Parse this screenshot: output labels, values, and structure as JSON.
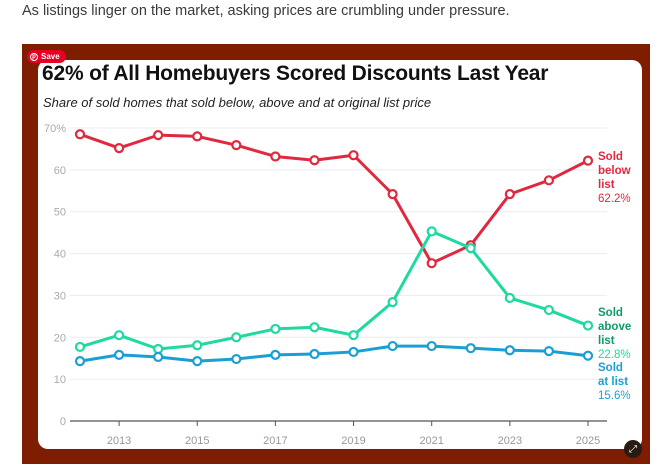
{
  "article": {
    "intro_text": "As listings linger on the market, asking prices are crumbling under pressure."
  },
  "overlay": {
    "save_label": "Save",
    "expand_icon": "expand-icon"
  },
  "colors": {
    "frame": "#7f1d00",
    "below": "#e0293f",
    "above": "#1ed9a0",
    "at": "#1a9fd4"
  },
  "chart_data": {
    "type": "line",
    "title": "62% of All Homebuyers Scored Discounts Last Year",
    "subtitle": "Share of sold homes that sold below, above and at original list price",
    "x": [
      2012,
      2013,
      2014,
      2015,
      2016,
      2017,
      2018,
      2019,
      2020,
      2021,
      2022,
      2023,
      2024,
      2025
    ],
    "x_ticks": [
      "2013",
      "2015",
      "2017",
      "2019",
      "2021",
      "2023",
      "2025"
    ],
    "y_ticks": [
      "0",
      "10",
      "20",
      "30",
      "40",
      "50",
      "60",
      "70%"
    ],
    "ylim": [
      0,
      70
    ],
    "grid": true,
    "series": [
      {
        "name": "Sold below list",
        "label_lines": [
          "Sold",
          "below",
          "list"
        ],
        "end_label": "62.2%",
        "color": "#e0293f",
        "values": [
          68.5,
          65.2,
          68.3,
          68.0,
          65.9,
          63.2,
          62.3,
          63.5,
          54.2,
          37.7,
          42.0,
          54.2,
          57.5,
          62.2
        ]
      },
      {
        "name": "Sold above list",
        "label_lines": [
          "Sold",
          "above",
          "list"
        ],
        "end_label": "22.8%",
        "color": "#1ed9a0",
        "values": [
          17.7,
          20.5,
          17.2,
          18.1,
          20.0,
          22.0,
          22.4,
          20.5,
          28.4,
          45.3,
          41.3,
          29.4,
          26.5,
          22.8
        ]
      },
      {
        "name": "Sold at list",
        "label_lines": [
          "Sold",
          "at list"
        ],
        "end_label": "15.6%",
        "color": "#1a9fd4",
        "values": [
          14.3,
          15.8,
          15.3,
          14.3,
          14.8,
          15.8,
          16.0,
          16.5,
          17.9,
          17.9,
          17.4,
          16.9,
          16.7,
          15.6
        ]
      }
    ]
  }
}
